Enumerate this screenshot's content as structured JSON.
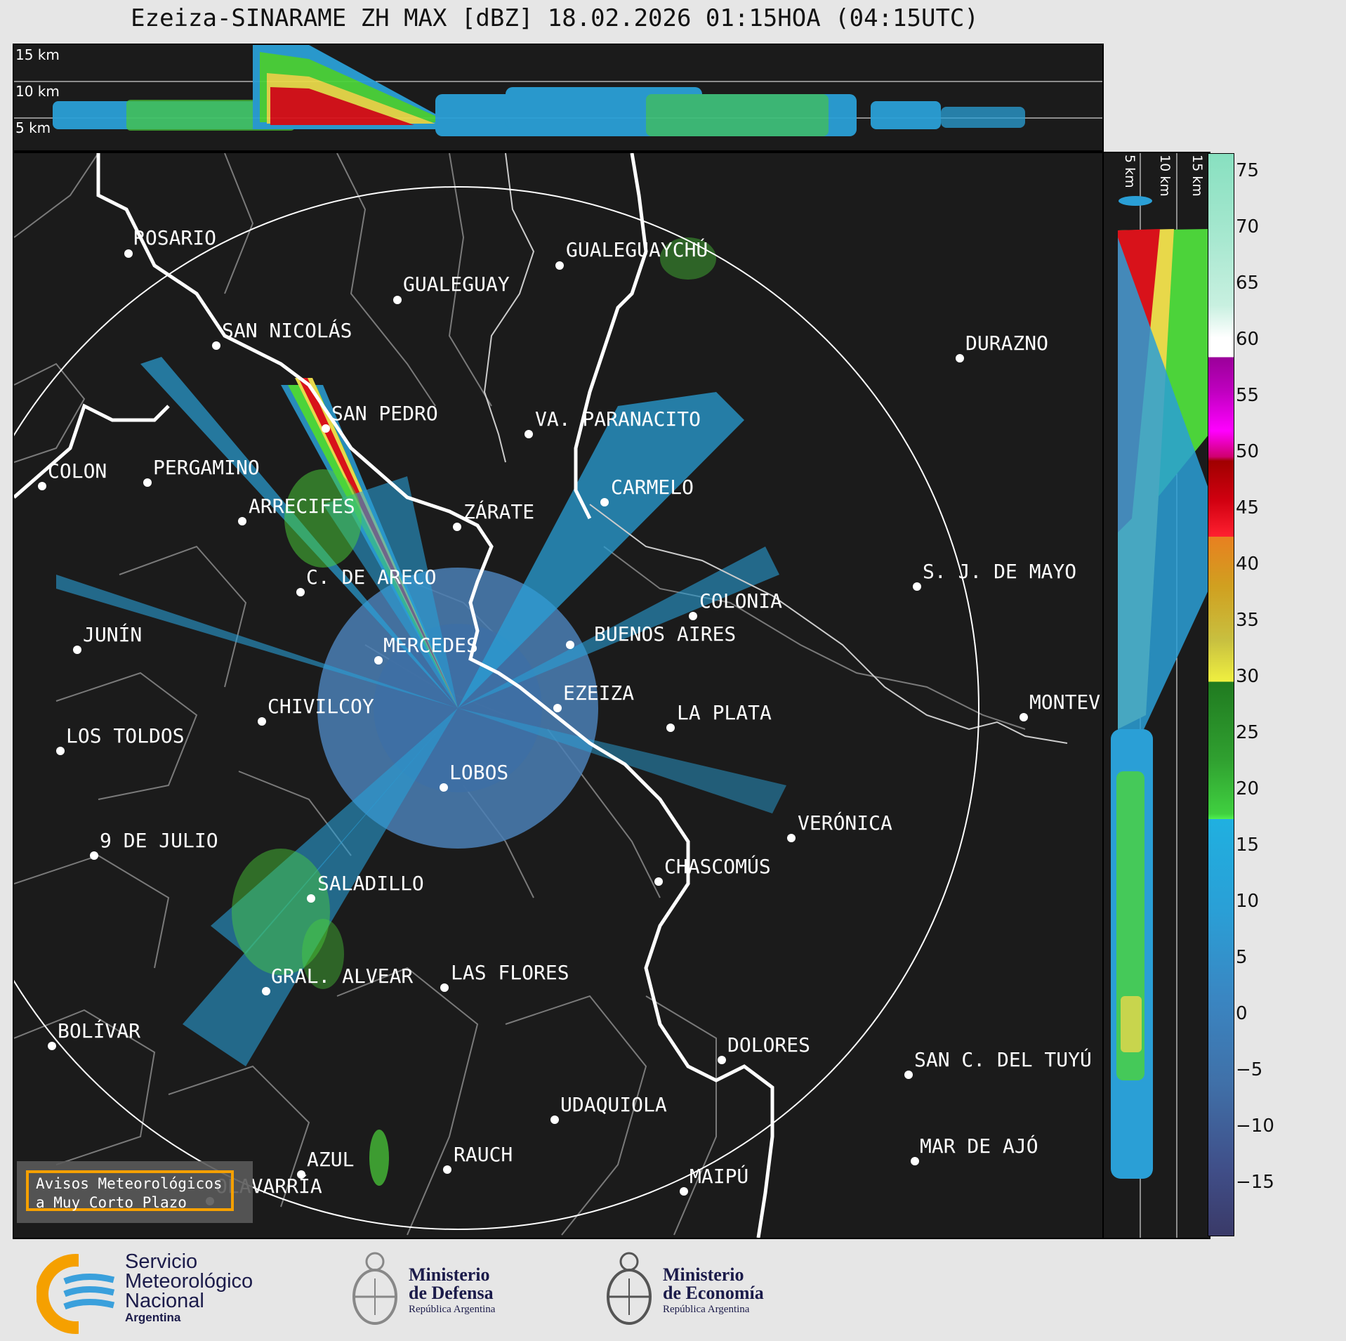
{
  "title": "Ezeiza-SINARAME ZH MAX [dBZ] 18.02.2026 01:15HOA (04:15UTC)",
  "top_panel": {
    "height_labels": [
      "15 km",
      "10 km",
      "5 km"
    ]
  },
  "side_panel": {
    "height_labels": [
      "5 km",
      "10 km",
      "15 km"
    ]
  },
  "cities": [
    "ROSARIO",
    "GUALEGUAYCHÚ",
    "GUALEGUAY",
    "SAN NICOLÁS",
    "DURAZNO",
    "SAN PEDRO",
    "VA. PARANACITO",
    "COLON",
    "PERGAMINO",
    "CARMELO",
    "ARRECIFES",
    "ZÁRATE",
    "S. J. DE MAYO",
    "C. DE ARECO",
    "COLONIA",
    "JUNÍN",
    "BUENOS AIRES",
    "MERCEDES",
    "MONTEV",
    "EZEIZA",
    "CHIVILCOY",
    "LA PLATA",
    "LOS TOLDOS",
    "LOBOS",
    "VERÓNICA",
    "9 DE JULIO",
    "CHASCOMÚS",
    "SALADILLO",
    "LAS FLORES",
    "GRAL. ALVEAR",
    "BOLÍVAR",
    "DOLORES",
    "SAN C. DEL TUYÚ",
    "UDAQUIOLA",
    "MAR DE AJÓ",
    "RAUCH",
    "AZUL",
    "MAIPÚ",
    "OLAVARRÍA"
  ],
  "colorbar": {
    "ticks": [
      "75",
      "70",
      "65",
      "60",
      "55",
      "50",
      "45",
      "40",
      "35",
      "30",
      "25",
      "20",
      "15",
      "10",
      "5",
      "0",
      "−5",
      "−10",
      "−15"
    ]
  },
  "warning_box": {
    "line1": "Avisos Meteorológicos",
    "line2": "a Muy Corto Plazo"
  },
  "logos": {
    "smn": {
      "line1": "Servicio",
      "line2": "Meteorológico",
      "line3": "Nacional",
      "line4": "Argentina"
    },
    "defensa": {
      "line1": "Ministerio",
      "line2": "de Defensa",
      "line3": "República Argentina"
    },
    "economia": {
      "line1": "Ministerio",
      "line2": "de Economía",
      "line3": "República Argentina"
    }
  },
  "colors": {
    "background": "#1b1b1b",
    "accent": "#f5a000",
    "smn_blue": "#3aa0dc",
    "smn_orange": "#f5a000"
  }
}
